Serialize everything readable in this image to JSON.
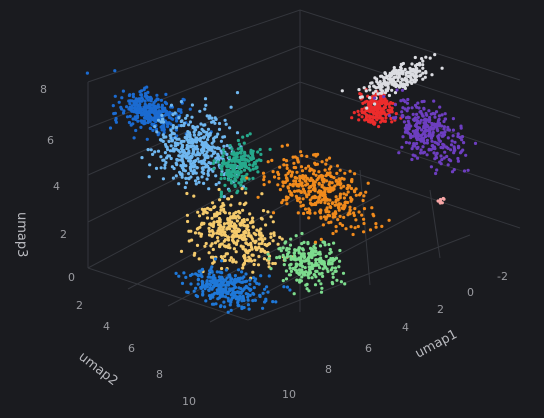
{
  "chart_data": {
    "type": "scatter",
    "projection": "3d",
    "title": "",
    "background": "#1a1b1f",
    "grid": true,
    "axes": {
      "x": {
        "label": "umap1",
        "ticks": [
          "-2",
          "0",
          "2",
          "4",
          "6",
          "8",
          "10"
        ],
        "range": [
          -3,
          11
        ]
      },
      "y": {
        "label": "umap2",
        "ticks": [
          "2",
          "4",
          "6",
          "8",
          "10"
        ],
        "range": [
          1,
          11
        ]
      },
      "z": {
        "label": "umap3",
        "ticks": [
          "0",
          "2",
          "4",
          "6",
          "8"
        ],
        "range": [
          0,
          9
        ]
      }
    },
    "clusters": [
      {
        "color": "#1b6bd1",
        "points": 320
      },
      {
        "color": "#6fb7f0",
        "points": 420
      },
      {
        "color": "#26a98c",
        "points": 200
      },
      {
        "color": "#f4ca6c",
        "points": 380
      },
      {
        "color": "#1f78d8",
        "points": 300
      },
      {
        "color": "#7ddc8e",
        "points": 250
      },
      {
        "color": "#f08a1c",
        "points": 400
      },
      {
        "color": "#ec2c2c",
        "points": 200
      },
      {
        "color": "#dcdde2",
        "points": 200
      },
      {
        "color": "#6d3ec0",
        "points": 320
      },
      {
        "color": "#f7a6a6",
        "points": 8
      }
    ]
  }
}
